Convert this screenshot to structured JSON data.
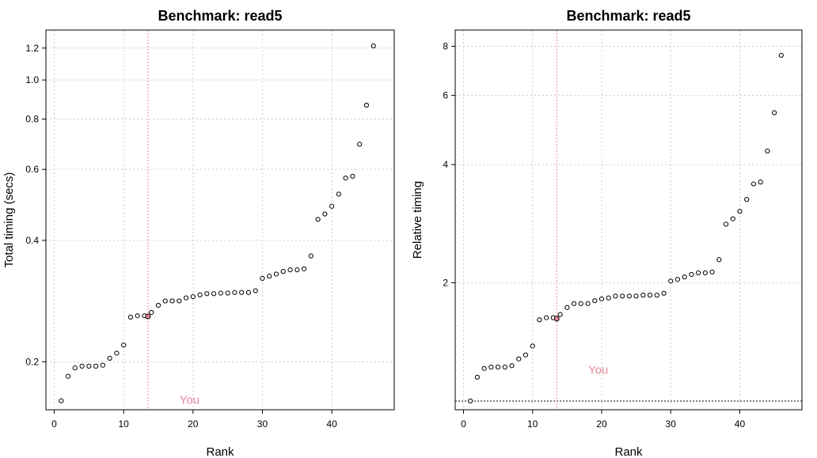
{
  "colors": {
    "highlight": "#e8899a",
    "grid": "#cccccc",
    "frame": "#000000",
    "point_fill": "#ffffff"
  },
  "chart_data": [
    {
      "type": "scatter",
      "title": "Benchmark: read5",
      "xlabel": "Rank",
      "ylabel": "Total timing (secs)",
      "y_scale": "log",
      "xlim": [
        -1.2,
        49
      ],
      "ylim": [
        0.152,
        1.33
      ],
      "x_ticks": [
        0,
        10,
        20,
        30,
        40
      ],
      "x_tick_labels": [
        "0",
        "10",
        "20",
        "30",
        "40"
      ],
      "y_ticks": [
        0.2,
        0.4,
        0.6,
        0.8,
        1.0,
        1.2
      ],
      "y_tick_labels": [
        "0.2",
        "0.4",
        "0.6",
        "0.8",
        "1.0",
        "1.2"
      ],
      "grid": true,
      "you_marker": {
        "label": "You",
        "x": 13.5,
        "y": 0.259,
        "label_x": 19.5,
        "label_y": 0.161
      },
      "x": [
        1,
        2,
        3,
        4,
        5,
        6,
        7,
        8,
        9,
        10,
        11,
        12,
        13,
        14,
        15,
        16,
        17,
        18,
        19,
        20,
        21,
        22,
        23,
        24,
        25,
        26,
        27,
        28,
        29,
        30,
        31,
        32,
        33,
        34,
        35,
        36,
        37,
        38,
        39,
        40,
        41,
        42,
        43,
        44,
        45,
        46
      ],
      "y": [
        0.16,
        0.184,
        0.193,
        0.195,
        0.195,
        0.195,
        0.196,
        0.204,
        0.21,
        0.22,
        0.258,
        0.26,
        0.26,
        0.265,
        0.276,
        0.283,
        0.283,
        0.283,
        0.288,
        0.29,
        0.293,
        0.295,
        0.295,
        0.296,
        0.296,
        0.297,
        0.297,
        0.297,
        0.3,
        0.322,
        0.326,
        0.33,
        0.335,
        0.338,
        0.338,
        0.34,
        0.366,
        0.451,
        0.465,
        0.486,
        0.521,
        0.571,
        0.577,
        0.693,
        0.866,
        1.215
      ]
    },
    {
      "type": "scatter",
      "title": "Benchmark: read5",
      "xlabel": "Rank",
      "ylabel": "Relative timing",
      "y_scale": "log",
      "xlim": [
        -1.2,
        49
      ],
      "ylim": [
        0.95,
        8.8
      ],
      "x_ticks": [
        0,
        10,
        20,
        30,
        40
      ],
      "x_tick_labels": [
        "0",
        "10",
        "20",
        "30",
        "40"
      ],
      "y_ticks": [
        2,
        4,
        6,
        8
      ],
      "y_tick_labels": [
        "2",
        "4",
        "6",
        "8"
      ],
      "grid": true,
      "reference_line_y": 1,
      "you_marker": {
        "label": "You",
        "x": 13.5,
        "y": 1.62,
        "label_x": 19.5,
        "label_y": 1.2
      },
      "x": [
        1,
        2,
        3,
        4,
        5,
        6,
        7,
        8,
        9,
        10,
        11,
        12,
        13,
        14,
        15,
        16,
        17,
        18,
        19,
        20,
        21,
        22,
        23,
        24,
        25,
        26,
        27,
        28,
        29,
        30,
        31,
        32,
        33,
        34,
        35,
        36,
        37,
        38,
        39,
        40,
        41,
        42,
        43,
        44,
        45,
        46
      ],
      "y": [
        1.0,
        1.15,
        1.21,
        1.22,
        1.22,
        1.22,
        1.23,
        1.28,
        1.31,
        1.38,
        1.61,
        1.63,
        1.63,
        1.66,
        1.73,
        1.77,
        1.77,
        1.77,
        1.8,
        1.82,
        1.83,
        1.85,
        1.85,
        1.85,
        1.85,
        1.86,
        1.86,
        1.86,
        1.88,
        2.02,
        2.04,
        2.07,
        2.1,
        2.12,
        2.12,
        2.13,
        2.29,
        2.82,
        2.91,
        3.04,
        3.26,
        3.57,
        3.61,
        4.33,
        5.42,
        7.59
      ]
    }
  ]
}
